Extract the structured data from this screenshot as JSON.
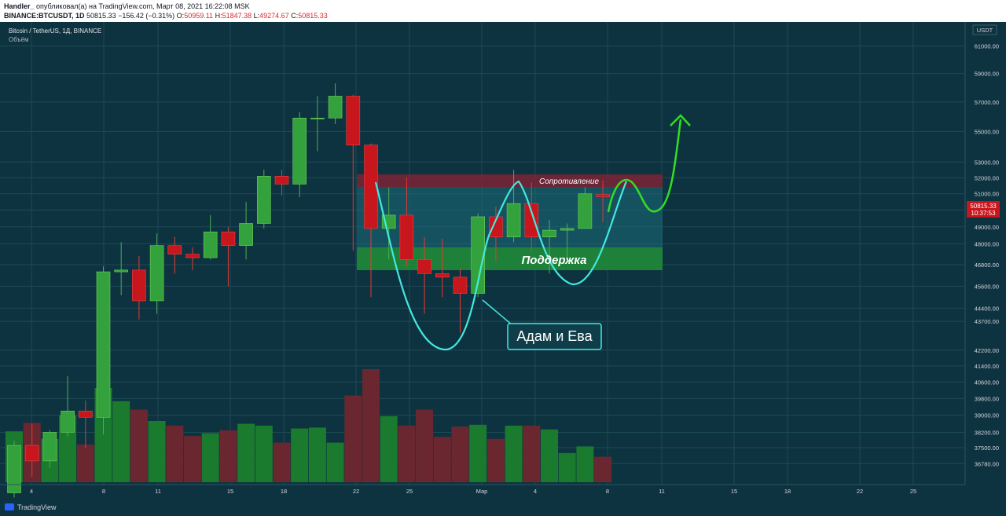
{
  "header": {
    "author": "Handler_",
    "published_text": "опубликовал(а) на TradingView.com, Март 08, 2021 16:22:08 MSK",
    "symbol": "BINANCE:BTCUSDT, 1D",
    "last": "50815.33",
    "change": "−156.42 (−0.31%)",
    "o_label": "O:",
    "o_val": "50959.11",
    "h_label": "H:",
    "h_val": "51847.38",
    "l_label": "L:",
    "l_val": "49274.67",
    "c_label": "C:",
    "c_val": "50815.33"
  },
  "legend": {
    "pair": "Bitcoin / TetherUS, 1Д, BINANCE",
    "volume": "Объём"
  },
  "footer": {
    "brand": "TradingView"
  },
  "colors": {
    "background": "#0e3340",
    "up": "#34a23c",
    "down": "#c8161d",
    "up_volume": "#1a7a2e",
    "down_volume": "#6b2730",
    "grid": "#1d4a55",
    "pattern_line": "#43e8e0",
    "forecast_arrow": "#33dd22",
    "resistance_zone": "#7a2535",
    "support_zone": "#1f8a3a",
    "price_tag": "#c8161d"
  },
  "chart_data": {
    "type": "candlestick",
    "title": "Bitcoin / TetherUS, 1Д, BINANCE",
    "y_axis_unit": "USDT",
    "y_axis_scale": "log",
    "ylim": [
      36200,
      62500
    ],
    "x_tick_labels": [
      "4",
      "8",
      "11",
      "15",
      "18",
      "22",
      "25",
      "Мар",
      "4",
      "8",
      "11",
      "15",
      "18",
      "22",
      "25"
    ],
    "y_tick_labels": [
      "61000.00",
      "59000.00",
      "57000.00",
      "55000.00",
      "53000.00",
      "52000.00",
      "51000.00",
      "50000.00",
      "49000.00",
      "48000.00",
      "46800.00",
      "45600.00",
      "44400.00",
      "43700.00",
      "42200.00",
      "41400.00",
      "40600.00",
      "39800.00",
      "39000.00",
      "38200.00",
      "37500.00",
      "36780.00"
    ],
    "candles": [
      {
        "date": "2021-02-03",
        "o": 35500,
        "h": 37800,
        "l": 35300,
        "c": 37600
      },
      {
        "date": "2021-02-04",
        "o": 37600,
        "h": 38600,
        "l": 36200,
        "c": 36900
      },
      {
        "date": "2021-02-05",
        "o": 36900,
        "h": 38300,
        "l": 36600,
        "c": 38200
      },
      {
        "date": "2021-02-06",
        "o": 38200,
        "h": 40900,
        "l": 38000,
        "c": 39200
      },
      {
        "date": "2021-02-07",
        "o": 39200,
        "h": 39700,
        "l": 37500,
        "c": 38900
      },
      {
        "date": "2021-02-08",
        "o": 38900,
        "h": 46700,
        "l": 38100,
        "c": 46400
      },
      {
        "date": "2021-02-09",
        "o": 46400,
        "h": 48100,
        "l": 45100,
        "c": 46500
      },
      {
        "date": "2021-02-10",
        "o": 46500,
        "h": 47300,
        "l": 43800,
        "c": 44800
      },
      {
        "date": "2021-02-11",
        "o": 44800,
        "h": 48600,
        "l": 44100,
        "c": 47900
      },
      {
        "date": "2021-02-12",
        "o": 47900,
        "h": 48400,
        "l": 46300,
        "c": 47400
      },
      {
        "date": "2021-02-13",
        "o": 47400,
        "h": 47800,
        "l": 46500,
        "c": 47200
      },
      {
        "date": "2021-02-14",
        "o": 47200,
        "h": 49700,
        "l": 47100,
        "c": 48700
      },
      {
        "date": "2021-02-15",
        "o": 48700,
        "h": 49000,
        "l": 45600,
        "c": 47900
      },
      {
        "date": "2021-02-16",
        "o": 47900,
        "h": 50500,
        "l": 47100,
        "c": 49200
      },
      {
        "date": "2021-02-17",
        "o": 49200,
        "h": 52500,
        "l": 48900,
        "c": 52100
      },
      {
        "date": "2021-02-18",
        "o": 52100,
        "h": 52500,
        "l": 50900,
        "c": 51600
      },
      {
        "date": "2021-02-19",
        "o": 51600,
        "h": 56300,
        "l": 50800,
        "c": 55900
      },
      {
        "date": "2021-02-20",
        "o": 55900,
        "h": 57400,
        "l": 53700,
        "c": 55900
      },
      {
        "date": "2021-02-21",
        "o": 55900,
        "h": 58300,
        "l": 55500,
        "c": 57400
      },
      {
        "date": "2021-02-22",
        "o": 57400,
        "h": 57500,
        "l": 47600,
        "c": 54100
      },
      {
        "date": "2021-02-23",
        "o": 54100,
        "h": 54200,
        "l": 45000,
        "c": 48900
      },
      {
        "date": "2021-02-24",
        "o": 48900,
        "h": 51400,
        "l": 47100,
        "c": 49700
      },
      {
        "date": "2021-02-25",
        "o": 49700,
        "h": 52000,
        "l": 46700,
        "c": 47100
      },
      {
        "date": "2021-02-26",
        "o": 47100,
        "h": 48400,
        "l": 44100,
        "c": 46300
      },
      {
        "date": "2021-02-27",
        "o": 46300,
        "h": 48300,
        "l": 45000,
        "c": 46100
      },
      {
        "date": "2021-02-28",
        "o": 46100,
        "h": 46600,
        "l": 43100,
        "c": 45200
      },
      {
        "date": "2021-03-01",
        "o": 45200,
        "h": 49800,
        "l": 45000,
        "c": 49600
      },
      {
        "date": "2021-03-02",
        "o": 49600,
        "h": 50200,
        "l": 47000,
        "c": 48400
      },
      {
        "date": "2021-03-03",
        "o": 48400,
        "h": 52500,
        "l": 48100,
        "c": 50400
      },
      {
        "date": "2021-03-04",
        "o": 50400,
        "h": 51700,
        "l": 47500,
        "c": 48400
      },
      {
        "date": "2021-03-05",
        "o": 48400,
        "h": 49400,
        "l": 46300,
        "c": 48800
      },
      {
        "date": "2021-03-06",
        "o": 48800,
        "h": 49200,
        "l": 47100,
        "c": 48900
      },
      {
        "date": "2021-03-07",
        "o": 48900,
        "h": 51400,
        "l": 48900,
        "c": 51000
      },
      {
        "date": "2021-03-08",
        "o": 50959.11,
        "h": 51847.38,
        "l": 49274.67,
        "c": 50815.33
      }
    ],
    "volume_relative": [
      0.54,
      0.63,
      0.46,
      0.71,
      0.4,
      1.0,
      0.86,
      0.77,
      0.65,
      0.6,
      0.49,
      0.52,
      0.55,
      0.62,
      0.6,
      0.42,
      0.57,
      0.58,
      0.42,
      0.92,
      1.2,
      0.7,
      0.6,
      0.77,
      0.48,
      0.59,
      0.61,
      0.46,
      0.6,
      0.6,
      0.56,
      0.31,
      0.38,
      0.27
    ],
    "current_price": "50815.33",
    "current_price_countdown": "10:37:53",
    "annotations": {
      "resistance": "Сопротивление",
      "support": "Поддержка",
      "pattern": "Адам и Ева"
    }
  }
}
